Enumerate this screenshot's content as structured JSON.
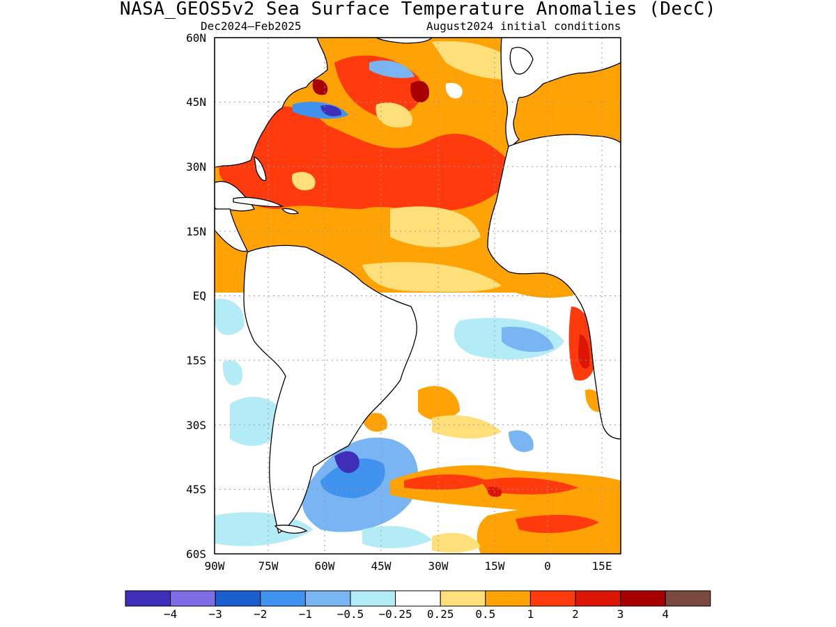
{
  "title": "NASA_GEOS5v2 Sea Surface Temperature Anomalies (DecC)",
  "subtitle_left": "Dec2024–Feb2025",
  "subtitle_right": "August2024 initial conditions",
  "map": {
    "lat_labels": [
      "60N",
      "45N",
      "30N",
      "15N",
      "EQ",
      "15S",
      "30S",
      "45S",
      "60S"
    ],
    "lon_labels": [
      "90W",
      "75W",
      "60W",
      "45W",
      "30W",
      "15W",
      "0",
      "15E"
    ],
    "lon_range": [
      -90,
      17
    ],
    "lat_range": [
      -60,
      60
    ],
    "gridlines": "dotted"
  },
  "colorbar": {
    "colors": [
      "#3f2fb8",
      "#7e6be6",
      "#1a5fcf",
      "#3f93ee",
      "#79b5f2",
      "#b3ecf6",
      "#ffffff",
      "#ffdf7a",
      "#ffa305",
      "#ff3a0d",
      "#dc1505",
      "#a80000",
      "#7a4a3e"
    ],
    "labels": [
      "−4",
      "−3",
      "−2",
      "−1",
      "−0.5",
      "−0.25",
      "0.25",
      "0.5",
      "1",
      "2",
      "3",
      "4"
    ]
  }
}
